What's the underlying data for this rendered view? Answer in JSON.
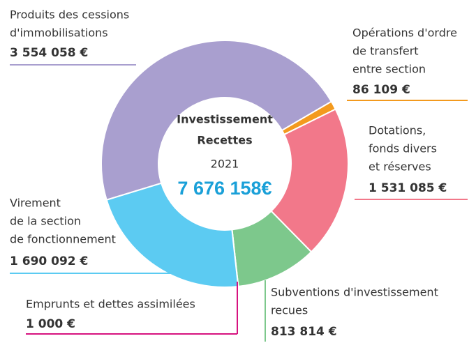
{
  "chart_data": {
    "type": "pie",
    "center_text": [
      "Investissement",
      "Recettes",
      "2021",
      "7 676 158€"
    ],
    "labels": [
      [
        "Produits des cessions",
        "d'immobilisations"
      ],
      [
        "Opérations d'ordre",
        "de transfert",
        "entre section"
      ],
      [
        "Dotations,",
        "fonds divers",
        "et réserves"
      ],
      [
        "Subventions d'investissement",
        "recues"
      ],
      [
        "Emprunts et dettes assimilées"
      ],
      [
        "Virement",
        "de la section",
        "de fonctionnement"
      ]
    ],
    "values": [
      3554058,
      86109,
      1531085,
      813814,
      1000,
      1690092
    ],
    "value_labels": [
      "3 554 058 €",
      "86 109 €",
      "1 531 085 €",
      "813 814 €",
      "1 000 €",
      "1 690 092 €"
    ],
    "colors": [
      "#a99fcf",
      "#f39a1e",
      "#f2788a",
      "#7dc88c",
      "#d6127f",
      "#5ccbf2"
    ]
  }
}
